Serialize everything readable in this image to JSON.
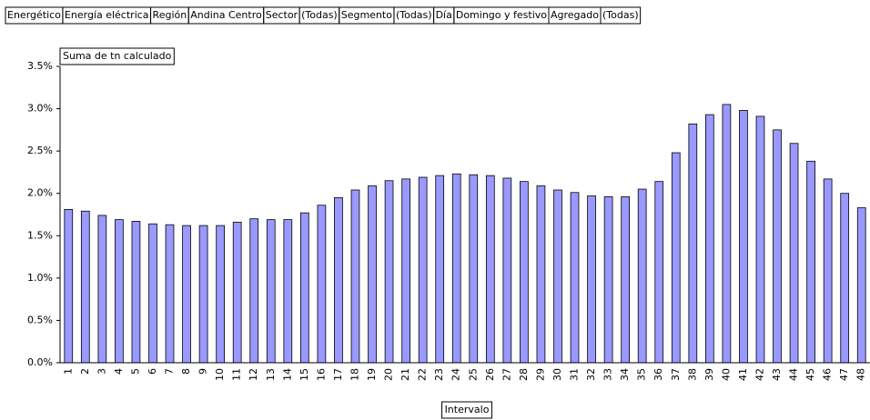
{
  "filters": [
    {
      "field": "Energético",
      "value": "Energía eléctrica"
    },
    {
      "field": "Región",
      "value": "Andina Centro"
    },
    {
      "field": "Sector",
      "value": "(Todas)"
    },
    {
      "field": "Segmento",
      "value": "(Todas)"
    },
    {
      "field": "Día",
      "value": "Domingo y festivo"
    },
    {
      "field": "Agregado",
      "value": "(Todas)"
    }
  ],
  "chart_data": {
    "type": "bar",
    "x_label": "Intervalo",
    "categories": [
      "1",
      "2",
      "3",
      "4",
      "5",
      "6",
      "7",
      "8",
      "9",
      "10",
      "11",
      "12",
      "13",
      "14",
      "15",
      "16",
      "17",
      "18",
      "19",
      "20",
      "21",
      "22",
      "23",
      "24",
      "25",
      "26",
      "27",
      "28",
      "29",
      "30",
      "31",
      "32",
      "33",
      "34",
      "35",
      "36",
      "37",
      "38",
      "39",
      "40",
      "41",
      "42",
      "43",
      "44",
      "45",
      "46",
      "47",
      "48"
    ],
    "series": [
      {
        "name": "Suma de tn calculado",
        "color": "#9999ff",
        "values": [
          1.81,
          1.79,
          1.74,
          1.69,
          1.67,
          1.64,
          1.63,
          1.62,
          1.62,
          1.62,
          1.66,
          1.7,
          1.69,
          1.69,
          1.77,
          1.86,
          1.95,
          2.04,
          2.09,
          2.15,
          2.17,
          2.19,
          2.21,
          2.23,
          2.22,
          2.21,
          2.18,
          2.14,
          2.09,
          2.04,
          2.01,
          1.97,
          1.96,
          1.96,
          2.05,
          2.14,
          2.48,
          2.82,
          2.93,
          3.05,
          2.98,
          2.91,
          2.75,
          2.59,
          2.38,
          2.17,
          2.0,
          1.83
        ]
      }
    ],
    "ylim": [
      0,
      3.5
    ],
    "yticks": [
      {
        "value": 0,
        "label": "0.0%"
      },
      {
        "value": 0.5,
        "label": "0.5%"
      },
      {
        "value": 1,
        "label": "1.0%"
      },
      {
        "value": 1.5,
        "label": "1.5%"
      },
      {
        "value": 2,
        "label": "2.0%"
      },
      {
        "value": 2.5,
        "label": "2.5%"
      },
      {
        "value": 3,
        "label": "3.0%"
      },
      {
        "value": 3.5,
        "label": "3.5%"
      }
    ],
    "grid": false
  }
}
